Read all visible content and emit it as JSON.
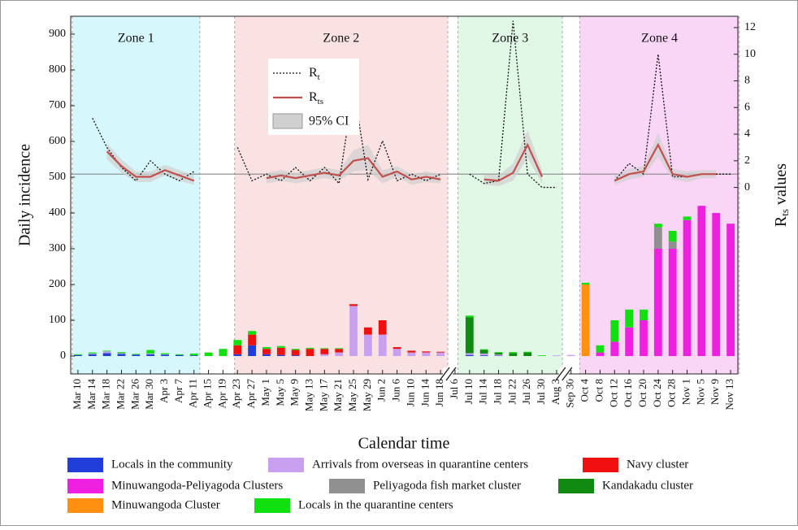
{
  "chart_data": {
    "type": "bar-line",
    "ylabel": "Daily incidence",
    "y2label": {
      "text": "R",
      "sub": "ts",
      "rest": " values"
    },
    "xlabel": "Calendar time",
    "ylim": [
      -50,
      950
    ],
    "yticks": [
      0,
      100,
      200,
      300,
      400,
      500,
      600,
      700,
      800,
      900
    ],
    "y2lim": [
      -14,
      12.85
    ],
    "y2ticks": [
      0,
      2,
      4,
      6,
      8,
      10,
      12
    ],
    "y2_reference": 1,
    "zones": [
      {
        "label": "Zone 1",
        "color": "#d6f7fc"
      },
      {
        "label": "Zone 2",
        "color": "#fbe2e2"
      },
      {
        "label": "Zone 3",
        "color": "#e2f8e6"
      },
      {
        "label": "Zone 4",
        "color": "#f9d5f6"
      }
    ],
    "categories": [
      "Mar 10",
      "Mar 14",
      "Mar 18",
      "Mar 22",
      "Mar 26",
      "Mar 30",
      "Apr 3",
      "Apr 7",
      "Apr 11",
      "Apr 15",
      "Apr 19",
      "Apr 23",
      "Apr 27",
      "May 1",
      "May 5",
      "May 9",
      "May 13",
      "May 17",
      "May 21",
      "May 25",
      "May 29",
      "Jun 2",
      "Jun 6",
      "Jun 10",
      "Jun 14",
      "Jun 18",
      "Jul 6",
      "Jul 10",
      "Jul 14",
      "Jul 18",
      "Jul 22",
      "Jul 26",
      "Jul 30",
      "Aug 3",
      "Sep 30",
      "Oct 4",
      "Oct 8",
      "Oct 12",
      "Oct 16",
      "Oct 20",
      "Oct 24",
      "Oct 28",
      "Nov 1",
      "Nov 5",
      "Nov 9",
      "Nov 13"
    ],
    "series": [
      {
        "name": "Locals in the community",
        "color": "#1f3fd8",
        "values": [
          3,
          5,
          8,
          6,
          4,
          5,
          4,
          3,
          2,
          0,
          0,
          5,
          30,
          5,
          3,
          2,
          0,
          0,
          0,
          0,
          0,
          0,
          0,
          0,
          0,
          0,
          0,
          3,
          2,
          1,
          0,
          0,
          0,
          0,
          0,
          0,
          0,
          0,
          0,
          0,
          0,
          0,
          0,
          0,
          0,
          0
        ]
      },
      {
        "name": "Arrivals from overseas in quarantine centers",
        "color": "#c9a0f0",
        "values": [
          0,
          2,
          5,
          2,
          0,
          2,
          1,
          0,
          0,
          0,
          0,
          0,
          0,
          0,
          0,
          0,
          0,
          5,
          10,
          140,
          60,
          60,
          20,
          10,
          10,
          10,
          0,
          5,
          5,
          3,
          0,
          0,
          0,
          2,
          3,
          0,
          0,
          0,
          0,
          0,
          0,
          0,
          0,
          0,
          0,
          0
        ]
      },
      {
        "name": "Navy cluster",
        "color": "#f01010",
        "values": [
          0,
          0,
          0,
          0,
          0,
          0,
          0,
          0,
          0,
          0,
          0,
          25,
          30,
          15,
          20,
          15,
          20,
          15,
          10,
          5,
          20,
          40,
          5,
          5,
          3,
          2,
          0,
          0,
          0,
          0,
          0,
          0,
          0,
          0,
          0,
          0,
          0,
          0,
          0,
          0,
          0,
          0,
          0,
          0,
          0,
          0
        ]
      },
      {
        "name": "Minuwangoda-Peliyagoda Clusters",
        "color": "#f020e0",
        "values": [
          0,
          0,
          0,
          0,
          0,
          0,
          0,
          0,
          0,
          0,
          0,
          0,
          0,
          0,
          0,
          0,
          0,
          0,
          0,
          0,
          0,
          0,
          0,
          0,
          0,
          0,
          0,
          0,
          0,
          0,
          0,
          0,
          0,
          0,
          0,
          0,
          10,
          40,
          80,
          100,
          300,
          300,
          380,
          420,
          400,
          370
        ]
      },
      {
        "name": "Peliyagoda fish market cluster",
        "color": "#909090",
        "values": [
          0,
          0,
          0,
          0,
          0,
          0,
          0,
          0,
          0,
          0,
          0,
          0,
          0,
          0,
          0,
          0,
          0,
          0,
          0,
          0,
          0,
          0,
          0,
          0,
          0,
          0,
          0,
          0,
          0,
          0,
          0,
          0,
          0,
          0,
          0,
          0,
          0,
          0,
          0,
          0,
          60,
          20,
          0,
          0,
          0,
          0
        ]
      },
      {
        "name": "Kandakadu  cluster",
        "color": "#108a10",
        "values": [
          0,
          0,
          0,
          0,
          0,
          0,
          0,
          0,
          0,
          0,
          0,
          0,
          0,
          0,
          0,
          0,
          0,
          0,
          0,
          0,
          0,
          0,
          0,
          0,
          0,
          0,
          0,
          100,
          10,
          5,
          8,
          10,
          0,
          0,
          0,
          0,
          0,
          0,
          0,
          0,
          0,
          0,
          0,
          0,
          0,
          0
        ]
      },
      {
        "name": "Minuwangoda Cluster",
        "color": "#ff9010",
        "values": [
          0,
          0,
          0,
          0,
          0,
          0,
          0,
          0,
          0,
          0,
          0,
          0,
          0,
          0,
          0,
          0,
          0,
          0,
          0,
          0,
          0,
          0,
          0,
          0,
          0,
          0,
          0,
          0,
          0,
          0,
          0,
          0,
          0,
          0,
          0,
          200,
          0,
          0,
          0,
          0,
          0,
          0,
          0,
          0,
          0,
          0
        ]
      },
      {
        "name": "Locals in the quarantine centers",
        "color": "#10e010",
        "values": [
          2,
          3,
          2,
          3,
          2,
          10,
          3,
          2,
          5,
          10,
          20,
          15,
          10,
          5,
          5,
          3,
          3,
          2,
          2,
          0,
          0,
          0,
          0,
          0,
          0,
          0,
          0,
          5,
          2,
          2,
          3,
          2,
          2,
          0,
          0,
          5,
          20,
          60,
          50,
          30,
          10,
          30,
          10,
          0,
          0,
          0
        ]
      }
    ],
    "lines": [
      {
        "name": "R",
        "sub": "t",
        "color": "#111111",
        "dash": true,
        "axis": "y2",
        "values": [
          null,
          5.2,
          3.0,
          1.5,
          0.5,
          2.0,
          1.0,
          0.5,
          1.2,
          null,
          null,
          3.0,
          0.5,
          1.0,
          0.5,
          1.5,
          0.5,
          1.5,
          0.3,
          7.5,
          0.6,
          3.5,
          0.5,
          1.0,
          0.5,
          1.0,
          null,
          1.0,
          0.3,
          0.5,
          12.5,
          1.0,
          0,
          0,
          null,
          null,
          null,
          0.5,
          1.8,
          1.0,
          10,
          0.8,
          0.8,
          1.0,
          1.0,
          1.0
        ]
      },
      {
        "name": "R",
        "sub": "ts",
        "color": "#c0504d",
        "dash": false,
        "axis": "y2",
        "values": [
          null,
          null,
          2.7,
          1.6,
          0.8,
          0.8,
          1.3,
          0.9,
          0.5,
          null,
          null,
          null,
          null,
          0.7,
          0.9,
          0.7,
          0.9,
          1.1,
          0.9,
          2.0,
          2.2,
          0.8,
          1.2,
          0.6,
          0.8,
          0.6,
          null,
          null,
          0.6,
          0.5,
          1.1,
          3.2,
          0.8,
          null,
          null,
          null,
          null,
          0.5,
          1.0,
          1.2,
          3.2,
          1.0,
          0.8,
          1.0,
          1.0,
          null
        ]
      }
    ],
    "ci": {
      "name": "95% CI",
      "color": "#d0d0d0",
      "axis": "y2",
      "upper": [
        null,
        null,
        3.3,
        2.1,
        1.2,
        1.2,
        1.7,
        1.3,
        0.9,
        null,
        null,
        null,
        null,
        1.1,
        1.3,
        1.1,
        1.3,
        1.5,
        1.3,
        2.8,
        3.2,
        1.3,
        1.6,
        1.0,
        1.2,
        1.0,
        null,
        null,
        1.0,
        0.9,
        1.8,
        4.3,
        1.3,
        null,
        null,
        null,
        null,
        0.9,
        1.4,
        1.6,
        4.1,
        1.4,
        1.2,
        1.3,
        1.3,
        null
      ],
      "lower": [
        null,
        null,
        2.1,
        1.1,
        0.4,
        0.4,
        0.9,
        0.5,
        0.2,
        null,
        null,
        null,
        null,
        0.3,
        0.5,
        0.3,
        0.5,
        0.7,
        0.5,
        1.2,
        1.3,
        0.3,
        0.8,
        0.2,
        0.4,
        0.3,
        null,
        null,
        0.2,
        0.1,
        0.5,
        2.2,
        0.3,
        null,
        null,
        null,
        null,
        0.2,
        0.6,
        0.8,
        2.3,
        0.6,
        0.4,
        0.7,
        0.7,
        null
      ]
    }
  }
}
